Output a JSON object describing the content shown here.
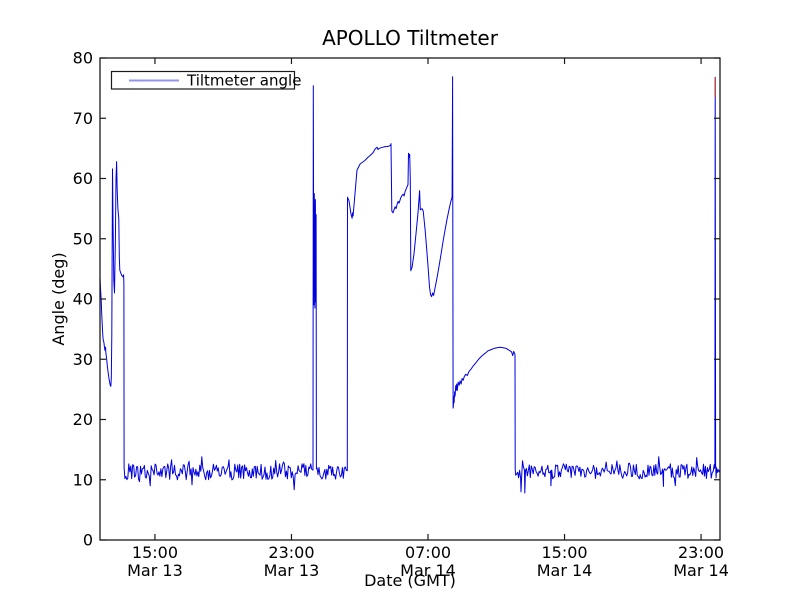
{
  "figure": {
    "background": "#ffffff"
  },
  "chart_data": {
    "type": "line",
    "title": "APOLLO Tiltmeter",
    "xlabel": "Date (GMT)",
    "ylabel": "Angle (deg)",
    "grid": false,
    "legend": {
      "label": "Tiltmeter angle",
      "position": "upper left",
      "sample_color": "#9494ee"
    },
    "line_color": "#0000dd",
    "axis_color": "#1a1a1a",
    "ylim": [
      0,
      80
    ],
    "yticks": [
      0,
      10,
      20,
      30,
      40,
      50,
      60,
      70,
      80
    ],
    "xlim_hours": [
      11.78,
      48.11
    ],
    "xticks": [
      {
        "hour": 15,
        "time": "15:00",
        "date": "Mar 13"
      },
      {
        "hour": 23,
        "time": "23:00",
        "date": "Mar 13"
      },
      {
        "hour": 31,
        "time": "07:00",
        "date": "Mar 14"
      },
      {
        "hour": 39,
        "time": "15:00",
        "date": "Mar 14"
      },
      {
        "hour": 47,
        "time": "23:00",
        "date": "Mar 14"
      }
    ],
    "series": [
      {
        "name": "Tiltmeter angle",
        "keypoint_segments": [
          [
            [
              11.78,
              43.6
            ],
            [
              11.81,
              41.8
            ],
            [
              11.85,
              39.8
            ],
            [
              11.88,
              37.6
            ],
            [
              11.91,
              35.9
            ],
            [
              11.94,
              34.2
            ],
            [
              11.97,
              33.2
            ],
            [
              12.01,
              32.8
            ],
            [
              12.04,
              32.1
            ],
            [
              12.07,
              31.5
            ],
            [
              12.1,
              32.0
            ],
            [
              12.13,
              30.9
            ],
            [
              12.17,
              30.0
            ],
            [
              12.21,
              28.9
            ],
            [
              12.25,
              28.0
            ],
            [
              12.29,
              27.1
            ],
            [
              12.33,
              26.4
            ],
            [
              12.37,
              25.8
            ],
            [
              12.41,
              25.5
            ],
            [
              12.44,
              26.8
            ],
            [
              12.47,
              34.0
            ],
            [
              12.51,
              61.6
            ],
            [
              12.55,
              52.0
            ],
            [
              12.59,
              43.0
            ],
            [
              12.63,
              41.0
            ],
            [
              12.68,
              50.0
            ],
            [
              12.72,
              60.0
            ],
            [
              12.75,
              62.8
            ],
            [
              12.79,
              58.0
            ],
            [
              12.83,
              55.0
            ],
            [
              12.88,
              53.3
            ],
            [
              12.91,
              47.0
            ],
            [
              12.94,
              44.8
            ],
            [
              13.0,
              44.3
            ],
            [
              13.06,
              43.9
            ],
            [
              13.12,
              43.7
            ],
            [
              13.16,
              44.0
            ],
            [
              13.18,
              42.5
            ],
            [
              13.19,
              12.0
            ]
          ],
          [
            [
              24.26,
              11.6
            ],
            [
              24.28,
              75.4
            ],
            [
              24.31,
              39.0
            ],
            [
              24.34,
              57.5
            ],
            [
              24.37,
              38.5
            ],
            [
              24.4,
              56.5
            ],
            [
              24.42,
              39.5
            ],
            [
              24.44,
              54.0
            ],
            [
              24.46,
              11.8
            ]
          ],
          [
            [
              26.27,
              11.5
            ],
            [
              26.28,
              56.9
            ],
            [
              26.37,
              56.3
            ],
            [
              26.49,
              54.1
            ],
            [
              26.55,
              53.4
            ],
            [
              26.58,
              54.3
            ],
            [
              26.61,
              53.8
            ],
            [
              26.72,
              57.5
            ],
            [
              26.84,
              61.4
            ],
            [
              27.02,
              62.4
            ],
            [
              27.31,
              63.0
            ],
            [
              27.48,
              63.5
            ],
            [
              27.6,
              63.8
            ],
            [
              27.78,
              64.3
            ],
            [
              27.9,
              64.9
            ],
            [
              28.01,
              65.2
            ],
            [
              28.07,
              64.8
            ],
            [
              28.13,
              65.0
            ],
            [
              28.25,
              65.1
            ],
            [
              28.36,
              65.2
            ],
            [
              28.48,
              65.3
            ],
            [
              28.6,
              65.3
            ],
            [
              28.72,
              65.4
            ],
            [
              28.8,
              65.5
            ],
            [
              28.83,
              65.8
            ],
            [
              28.88,
              54.6
            ],
            [
              28.95,
              54.3
            ],
            [
              29.01,
              54.8
            ],
            [
              29.07,
              55.3
            ],
            [
              29.13,
              55.0
            ],
            [
              29.19,
              55.7
            ],
            [
              29.25,
              56.2
            ],
            [
              29.3,
              55.9
            ],
            [
              29.36,
              56.4
            ],
            [
              29.42,
              56.9
            ],
            [
              29.48,
              57.2
            ],
            [
              29.54,
              57.4
            ],
            [
              29.6,
              57.1
            ],
            [
              29.65,
              57.8
            ],
            [
              29.71,
              58.2
            ],
            [
              29.77,
              58.6
            ],
            [
              29.83,
              59.0
            ],
            [
              29.86,
              64.2
            ],
            [
              29.9,
              63.5
            ],
            [
              29.93,
              64.0
            ],
            [
              29.96,
              59.8
            ],
            [
              29.99,
              44.7
            ],
            [
              30.07,
              45.3
            ],
            [
              30.18,
              47.5
            ],
            [
              30.3,
              51.0
            ],
            [
              30.42,
              54.5
            ],
            [
              30.51,
              58.0
            ],
            [
              30.55,
              54.8
            ],
            [
              30.65,
              55.0
            ],
            [
              30.72,
              54.6
            ],
            [
              30.83,
              51.5
            ],
            [
              30.92,
              48.5
            ],
            [
              31.0,
              45.5
            ],
            [
              31.09,
              42.0
            ],
            [
              31.15,
              40.7
            ],
            [
              31.21,
              40.4
            ],
            [
              31.27,
              41.0
            ],
            [
              31.33,
              40.6
            ],
            [
              31.41,
              41.8
            ],
            [
              31.53,
              43.5
            ],
            [
              31.65,
              45.5
            ],
            [
              31.77,
              47.5
            ],
            [
              31.88,
              49.5
            ],
            [
              32.0,
              51.5
            ],
            [
              32.12,
              53.3
            ],
            [
              32.24,
              55.0
            ],
            [
              32.35,
              56.3
            ],
            [
              32.41,
              56.9
            ],
            [
              32.44,
              76.9
            ],
            [
              32.47,
              21.9
            ]
          ],
          [
            [
              32.49,
              22.3
            ],
            [
              32.51,
              23.8
            ],
            [
              32.53,
              22.8
            ],
            [
              32.56,
              24.6
            ],
            [
              32.59,
              23.9
            ],
            [
              32.62,
              25.6
            ],
            [
              32.65,
              24.9
            ],
            [
              32.68,
              25.9
            ],
            [
              32.71,
              24.8
            ],
            [
              32.77,
              26.2
            ],
            [
              32.83,
              25.7
            ],
            [
              32.88,
              26.4
            ],
            [
              32.94,
              25.9
            ],
            [
              33.0,
              26.8
            ],
            [
              33.06,
              26.5
            ],
            [
              33.12,
              27.1
            ],
            [
              33.21,
              27.5
            ],
            [
              33.3,
              27.3
            ],
            [
              33.41,
              28.0
            ],
            [
              33.53,
              28.4
            ],
            [
              33.65,
              28.9
            ],
            [
              33.77,
              29.3
            ],
            [
              33.88,
              29.7
            ],
            [
              34.0,
              30.1
            ],
            [
              34.17,
              30.6
            ],
            [
              34.35,
              31.0
            ],
            [
              34.52,
              31.4
            ],
            [
              34.7,
              31.6
            ],
            [
              34.87,
              31.8
            ],
            [
              35.05,
              31.9
            ],
            [
              35.23,
              32.0
            ],
            [
              35.4,
              31.9
            ],
            [
              35.58,
              31.8
            ],
            [
              35.69,
              31.6
            ],
            [
              35.81,
              31.4
            ],
            [
              35.9,
              31.2
            ],
            [
              35.96,
              30.6
            ],
            [
              36.02,
              31.3
            ],
            [
              36.07,
              31.0
            ],
            [
              36.1,
              30.8
            ],
            [
              36.11,
              11.7
            ]
          ],
          [
            [
              47.79,
              11.9
            ],
            [
              47.81,
              12.4
            ],
            [
              47.83,
              76.8
            ],
            [
              47.85,
              12.6
            ],
            [
              47.88,
              10.3
            ],
            [
              47.91,
              12.0
            ],
            [
              47.95,
              11.2
            ],
            [
              48.0,
              11.7
            ],
            [
              48.05,
              11.3
            ],
            [
              48.1,
              11.6
            ]
          ]
        ],
        "noise_segments": [
          {
            "t0": 13.24,
            "t1": 24.24,
            "mean": 11.3,
            "amp": 1.35,
            "events": []
          },
          {
            "t0": 24.5,
            "t1": 26.25,
            "mean": 11.2,
            "amp": 1.2,
            "events": []
          },
          {
            "t0": 36.14,
            "t1": 47.77,
            "mean": 11.4,
            "amp": 1.25,
            "events": [
              [
                36.45,
                8.0
              ],
              [
                36.67,
                7.8
              ],
              [
                38.2,
                9.0
              ],
              [
                44.8,
                8.9
              ]
            ]
          }
        ],
        "noise_seed": 42
      }
    ],
    "annotations": [
      {
        "type": "spike-tip",
        "t": 47.83,
        "v_from": 73.5,
        "v_to": 76.8,
        "color": "#c83200"
      }
    ]
  }
}
